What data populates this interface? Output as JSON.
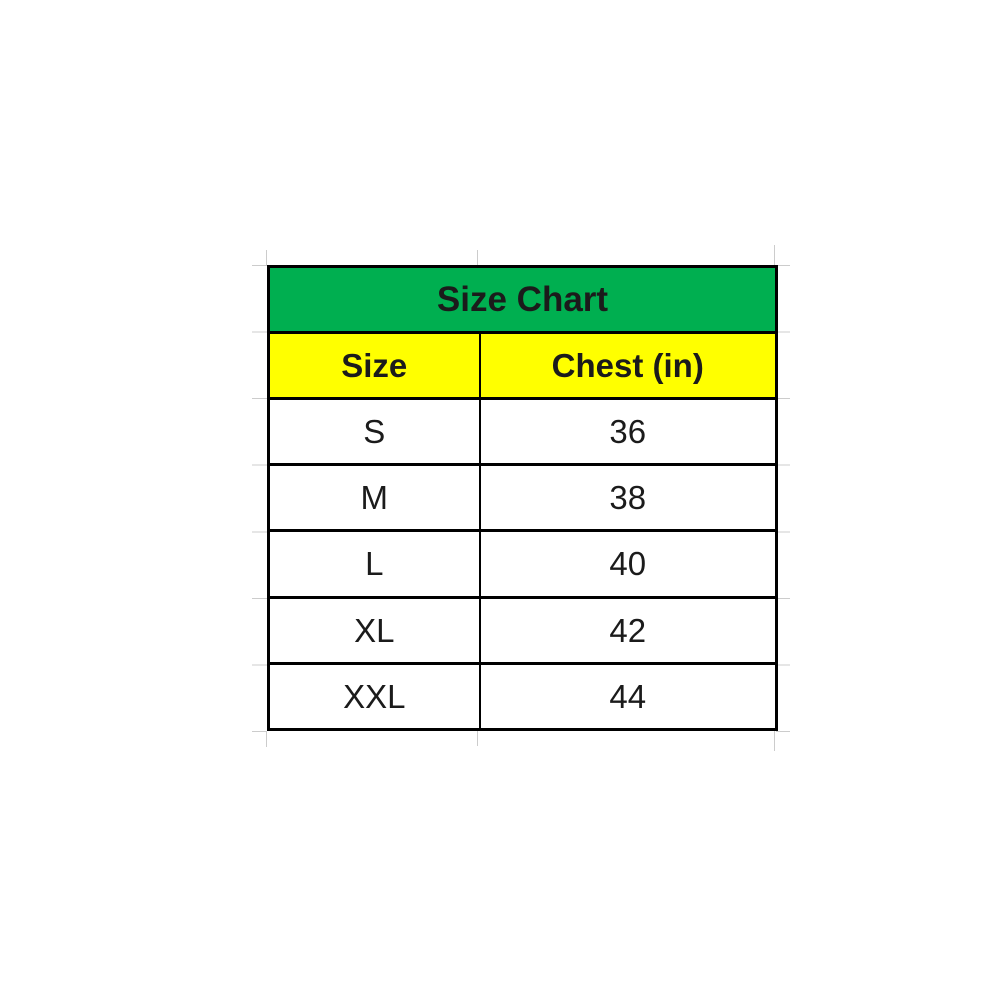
{
  "chart_data": {
    "type": "table",
    "title": "Size Chart",
    "columns": [
      "Size",
      "Chest (in)"
    ],
    "rows": [
      [
        "S",
        "36"
      ],
      [
        "M",
        "38"
      ],
      [
        "L",
        "40"
      ],
      [
        "XL",
        "42"
      ],
      [
        "XXL",
        "44"
      ]
    ]
  },
  "colors": {
    "title_bg": "#00AF50",
    "header_bg": "#FFFF00",
    "border": "#000000",
    "text": "#1b1b1b",
    "data_text": "#20242c",
    "gridline": "#cccccc",
    "background": "#ffffff"
  }
}
